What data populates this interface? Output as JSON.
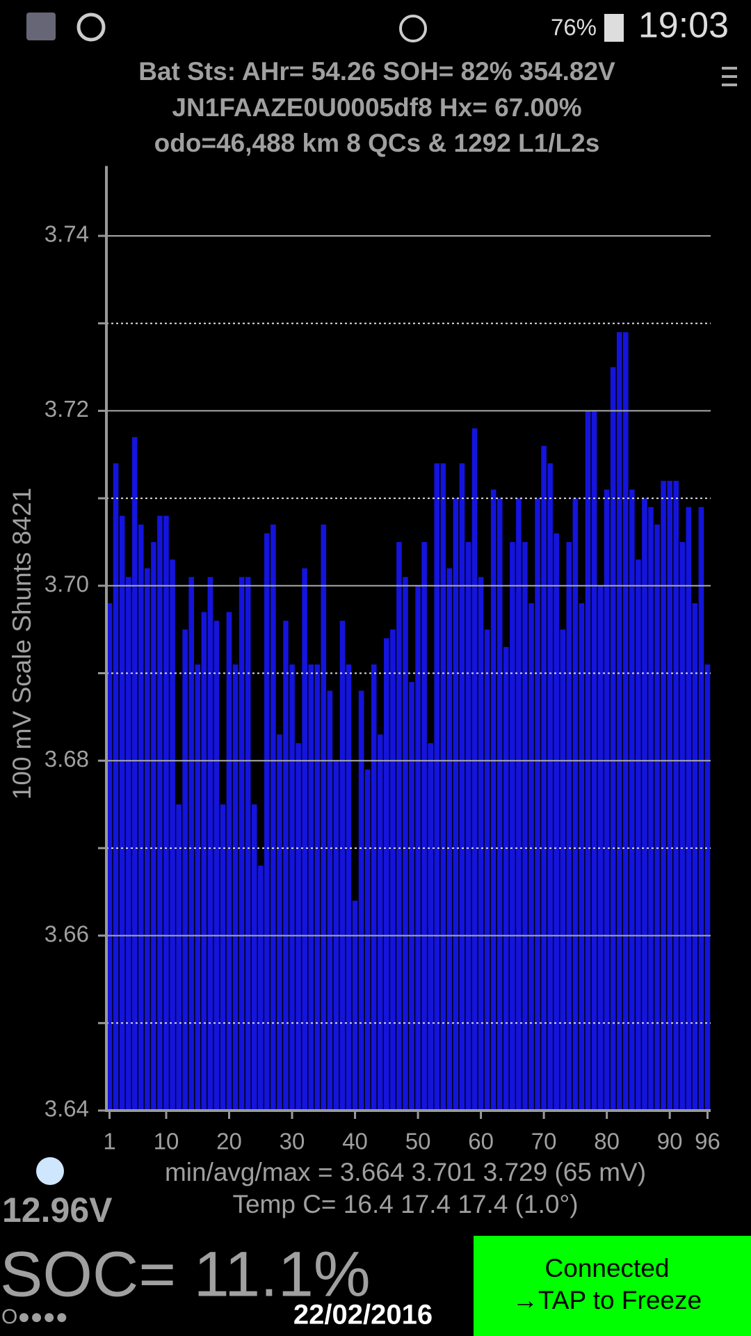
{
  "status_bar": {
    "battery": "76%",
    "time": "19:03"
  },
  "header": {
    "line1": "Bat Sts: AHr= 54.26 SOH= 82% 354.82V",
    "line2": "JN1FAAZE0U0005df8   Hx= 67.00%",
    "line3": "odo=46,488 km 8 QCs & 1292 L1/L2s"
  },
  "chart_data": {
    "type": "bar",
    "y_label": "100 mV Scale   Shunts 8421",
    "color": "#1414dc",
    "x": [
      1,
      2,
      3,
      4,
      5,
      6,
      7,
      8,
      9,
      10,
      11,
      12,
      13,
      14,
      15,
      16,
      17,
      18,
      19,
      20,
      21,
      22,
      23,
      24,
      25,
      26,
      27,
      28,
      29,
      30,
      31,
      32,
      33,
      34,
      35,
      36,
      37,
      38,
      39,
      40,
      41,
      42,
      43,
      44,
      45,
      46,
      47,
      48,
      49,
      50,
      51,
      52,
      53,
      54,
      55,
      56,
      57,
      58,
      59,
      60,
      61,
      62,
      63,
      64,
      65,
      66,
      67,
      68,
      69,
      70,
      71,
      72,
      73,
      74,
      75,
      76,
      77,
      78,
      79,
      80,
      81,
      82,
      83,
      84,
      85,
      86,
      87,
      88,
      89,
      90,
      91,
      92,
      93,
      94,
      95,
      96
    ],
    "values": [
      3.698,
      3.714,
      3.708,
      3.701,
      3.717,
      3.707,
      3.702,
      3.705,
      3.708,
      3.708,
      3.703,
      3.675,
      3.695,
      3.701,
      3.691,
      3.697,
      3.701,
      3.696,
      3.675,
      3.697,
      3.691,
      3.701,
      3.701,
      3.675,
      3.668,
      3.706,
      3.707,
      3.683,
      3.696,
      3.691,
      3.682,
      3.702,
      3.691,
      3.691,
      3.707,
      3.688,
      3.68,
      3.696,
      3.691,
      3.664,
      3.688,
      3.679,
      3.691,
      3.683,
      3.694,
      3.695,
      3.705,
      3.701,
      3.689,
      3.7,
      3.705,
      3.682,
      3.714,
      3.714,
      3.702,
      3.71,
      3.714,
      3.705,
      3.718,
      3.701,
      3.695,
      3.711,
      3.71,
      3.693,
      3.705,
      3.71,
      3.705,
      3.698,
      3.71,
      3.716,
      3.714,
      3.706,
      3.695,
      3.705,
      3.71,
      3.698,
      3.72,
      3.72,
      3.7,
      3.711,
      3.725,
      3.729,
      3.729,
      3.711,
      3.703,
      3.71,
      3.709,
      3.707,
      3.712,
      3.712,
      3.712,
      3.705,
      3.709,
      3.698,
      3.709,
      3.691
    ],
    "xlim": [
      0.5,
      96.5
    ],
    "xticks": [
      1,
      10,
      20,
      30,
      40,
      50,
      60,
      70,
      80,
      90,
      96
    ],
    "ylim": [
      3.64,
      3.748
    ],
    "yticks": [
      3.64,
      3.66,
      3.68,
      {
        "value": 3.7,
        "label": "3.70"
      },
      3.72,
      3.74
    ],
    "y_minor_ticks": [
      3.65,
      3.67,
      3.69,
      3.71,
      3.73
    ],
    "grid": true
  },
  "stats": {
    "line1": "min/avg/max = 3.664 3.701 3.729  (65 mV)",
    "line2": "Temp C= 16.4  17.4  17.4  (1.0°)"
  },
  "footer": {
    "voltage": "12.96V",
    "soc": "SOC= 11.1%",
    "dots": "O●●●●",
    "date": "22/02/2016",
    "button_line1": "Connected",
    "button_line2": "→TAP to Freeze"
  }
}
